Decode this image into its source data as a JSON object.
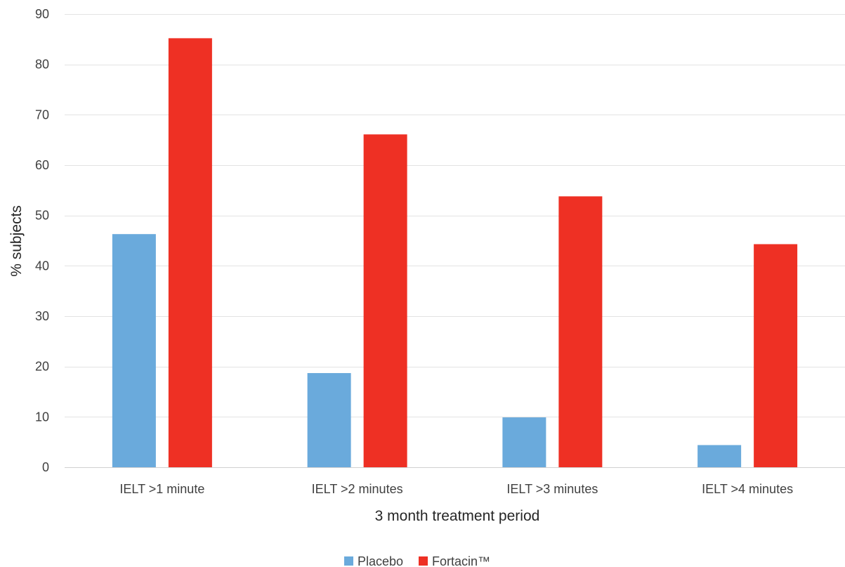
{
  "chart_data": {
    "type": "bar",
    "title": "",
    "xlabel": "3 month treatment period",
    "ylabel": "% subjects",
    "ylim": [
      0,
      90
    ],
    "yticks": [
      0,
      10,
      20,
      30,
      40,
      50,
      60,
      70,
      80,
      90
    ],
    "grid": true,
    "legend_position": "bottom",
    "categories": [
      "IELT >1 minute",
      "IELT >2 minutes",
      "IELT >3 minutes",
      "IELT >4 minutes"
    ],
    "series": [
      {
        "name": "Placebo",
        "color": "#6aaadc",
        "values": [
          46.3,
          18.7,
          9.9,
          4.4
        ]
      },
      {
        "name": "Fortacin™",
        "color": "#ee3024",
        "values": [
          85.2,
          66.1,
          53.8,
          44.3
        ]
      }
    ]
  }
}
